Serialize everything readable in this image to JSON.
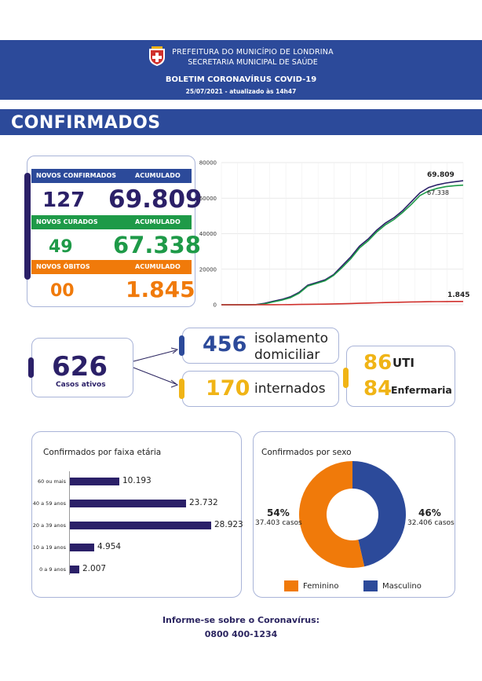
{
  "header": {
    "line1": "PREFEITURA DO MUNICÍPIO DE LONDRINA",
    "line2": "SECRETARIA MUNICIPAL DE SAÚDE",
    "title": "BOLETIM CORONAVÍRUS COVID-19",
    "date": "25/07/2021 - atualizado às 14h47"
  },
  "banner_title": "CONFIRMADOS",
  "summary": {
    "confirmados_label": "NOVOS CONFIRMADOS",
    "acumulado_label": "ACUMULADO",
    "confirmados_new": "127",
    "confirmados_total": "69.809",
    "curados_label": "NOVOS CURADOS",
    "curados_new": "49",
    "curados_total": "67.338",
    "obitos_label": "NOVOS ÓBITOS",
    "obitos_new": "00",
    "obitos_total": "1.845"
  },
  "active": {
    "value": "626",
    "label": "Casos ativos",
    "isolamento_value": "456",
    "isolamento_label_1": "isolamento",
    "isolamento_label_2": "domiciliar",
    "internados_value": "170",
    "internados_label": "internados",
    "uti_value": "86",
    "uti_label": "UTI",
    "enfermaria_value": "84",
    "enfermaria_label": "Enfermaria"
  },
  "colors": {
    "navy": "#2b2068",
    "blue": "#2c4a9a",
    "green": "#1e9a48",
    "orange": "#f07a0a",
    "yellow": "#f0b416",
    "red": "#d0312d"
  },
  "line_chart": {
    "yticks": [
      "80000",
      "60000",
      "40000",
      "20000",
      "0"
    ],
    "label_confirmados": "69.809",
    "label_curados": "67.338",
    "label_obitos": "1.845"
  },
  "age": {
    "title": "Confirmados por faixa etária",
    "rows": [
      {
        "label": "60 ou mais",
        "value": "10.193"
      },
      {
        "label": "40 a 59 anos",
        "value": "23.732"
      },
      {
        "label": "20 a 39 anos",
        "value": "28.923"
      },
      {
        "label": "10 a 19 anos",
        "value": "4.954"
      },
      {
        "label": "0 a 9 anos",
        "value": "2.007"
      }
    ]
  },
  "sex": {
    "title": "Confirmados por sexo",
    "fem_pct": "54%",
    "fem_cases": "37.403 casos",
    "masc_pct": "46%",
    "masc_cases": "32.406 casos",
    "fem_legend": "Feminino",
    "masc_legend": "Masculino"
  },
  "footer": {
    "line1": "Informe-se sobre o Coronavírus:",
    "line2": "0800 400-1234"
  },
  "chart_data": [
    {
      "type": "line",
      "title": "",
      "xlabel": "",
      "ylabel": "",
      "ylim": [
        0,
        80000
      ],
      "grid": true,
      "x": [
        0,
        1,
        2,
        3,
        4,
        5,
        6,
        7,
        8,
        9,
        10,
        11,
        12,
        13,
        14,
        15,
        16,
        17,
        18,
        19,
        20,
        21,
        22,
        23,
        24,
        25,
        26,
        27,
        28
      ],
      "series": [
        {
          "values": [
            0,
            0,
            0,
            0,
            100,
            800,
            2000,
            3000,
            4500,
            7000,
            11000,
            12500,
            14000,
            17000,
            22000,
            27000,
            33000,
            37000,
            42000,
            46000,
            49000,
            53000,
            58000,
            63000,
            66000,
            67500,
            68500,
            69200,
            69809
          ]
        },
        {
          "values": [
            0,
            0,
            0,
            0,
            50,
            500,
            1600,
            2600,
            4000,
            6500,
            10500,
            12000,
            13500,
            16500,
            21000,
            26000,
            32000,
            36000,
            41000,
            45000,
            48000,
            52000,
            56500,
            61500,
            64000,
            65500,
            66500,
            67000,
            67338
          ]
        },
        {
          "values": [
            0,
            0,
            0,
            0,
            0,
            10,
            40,
            60,
            100,
            180,
            260,
            320,
            380,
            450,
            560,
            700,
            850,
            980,
            1100,
            1230,
            1350,
            1460,
            1560,
            1650,
            1720,
            1770,
            1800,
            1830,
            1845
          ]
        }
      ]
    },
    {
      "type": "bar",
      "title": "Confirmados por faixa etária",
      "categories": [
        "60 ou mais",
        "40 a 59 anos",
        "20 a 39 anos",
        "10 a 19 anos",
        "0 a 9 anos"
      ],
      "values": [
        10193,
        23732,
        28923,
        4954,
        2007
      ]
    },
    {
      "type": "pie",
      "title": "Confirmados por sexo",
      "categories": [
        "Feminino",
        "Masculino"
      ],
      "values": [
        37403,
        32406
      ]
    }
  ]
}
